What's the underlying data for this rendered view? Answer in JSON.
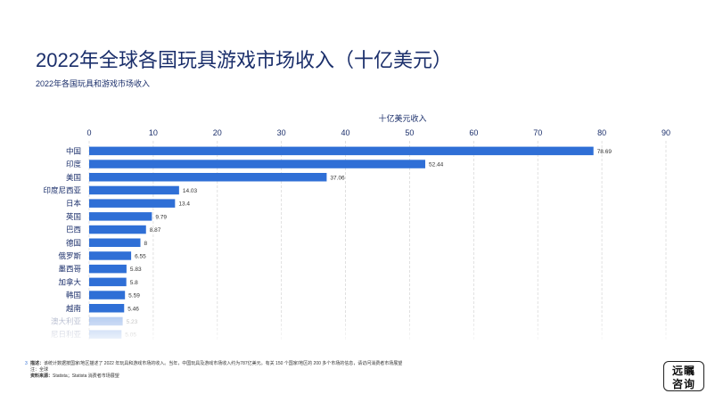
{
  "slide": {
    "title": "2022年全球各国玩具游戏市场收入（十亿美元）",
    "subtitle": "2022年各国玩具和游戏市场收入",
    "page_number": "3"
  },
  "footer": {
    "description_label": "描述：",
    "description": "该统计数据按国家/地区描述了 2022 年玩具和游戏市场的收入。当年，中国玩具及游戏市场收入约为787亿美元。有关 150 个国家/地区的 200 多个市场的信息，请访问消费者市场展望",
    "note_label": "注：",
    "note": "全球",
    "source_label": "资料来源：",
    "source": "Statista；Statista 消费者市场展望"
  },
  "logo": {
    "line1": "远瞩",
    "line2": "咨询"
  },
  "colors": {
    "bar": "#2f6fd6",
    "grid": "#d9d9d9",
    "text": "#1b2f6b"
  },
  "chart_data": {
    "type": "bar",
    "orientation": "horizontal",
    "xlabel": "十亿美元收入",
    "xlim": [
      0,
      90
    ],
    "xticks": [
      0,
      10,
      20,
      30,
      40,
      50,
      60,
      70,
      80,
      90
    ],
    "axis_position": "top",
    "grid": true,
    "categories": [
      "中国",
      "印度",
      "美国",
      "印度尼西亚",
      "日本",
      "英国",
      "巴西",
      "德国",
      "俄罗斯",
      "墨西哥",
      "加拿大",
      "韩国",
      "越南",
      "澳大利亚",
      "尼日利亚"
    ],
    "values": [
      78.69,
      52.44,
      37.06,
      14.03,
      13.4,
      9.79,
      8.87,
      8,
      6.55,
      5.83,
      5.8,
      5.59,
      5.46,
      5.23,
      5.05
    ]
  }
}
